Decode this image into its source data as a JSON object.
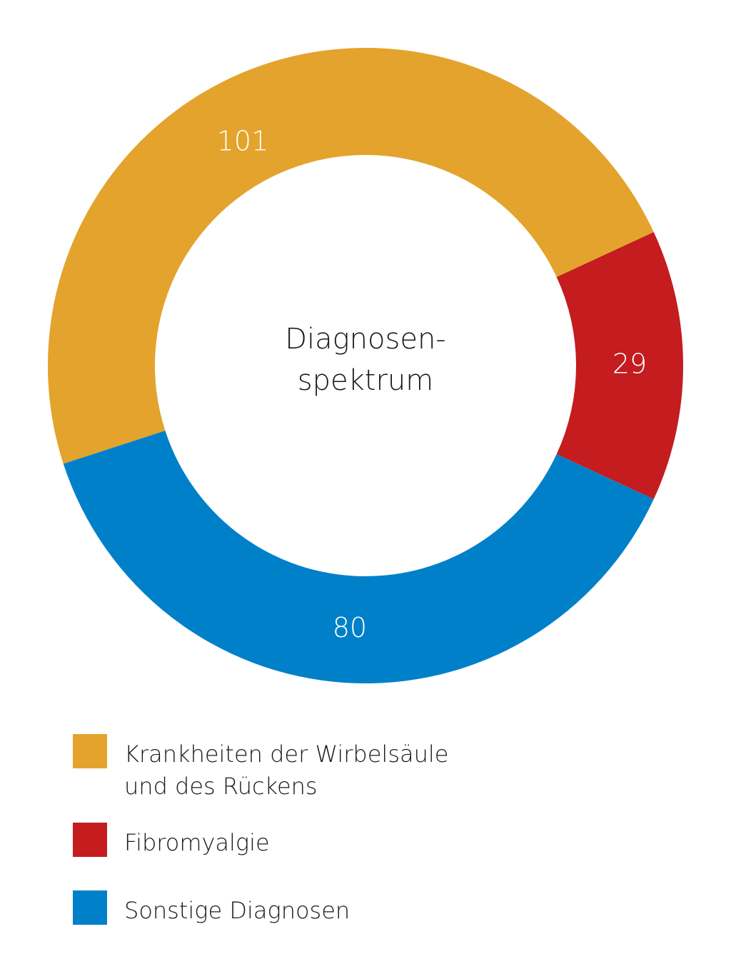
{
  "chart_data": {
    "type": "pie",
    "title": "Diagnosen-\nspektrum",
    "center_lines": [
      "Diagnosen-",
      "spektrum"
    ],
    "categories": [
      "Krankheiten der Wirbelsäule\nund des Rückens",
      "Fibromyalgie",
      "Sonstige Diagnosen"
    ],
    "values": [
      101,
      29,
      80
    ],
    "value_labels": [
      "101",
      "29",
      "80"
    ],
    "colors": [
      "#e3a32c",
      "#c41c1f",
      "#0080c9"
    ],
    "donut": true,
    "legend_placement": "bottom"
  },
  "legend": {
    "items": [
      {
        "label": "Krankheiten der Wirbelsäule\nund des Rückens",
        "color": "#e3a32c"
      },
      {
        "label": "Fibromyalgie",
        "color": "#c41c1f"
      },
      {
        "label": "Sonstige Diagnosen",
        "color": "#0080c9"
      }
    ]
  }
}
